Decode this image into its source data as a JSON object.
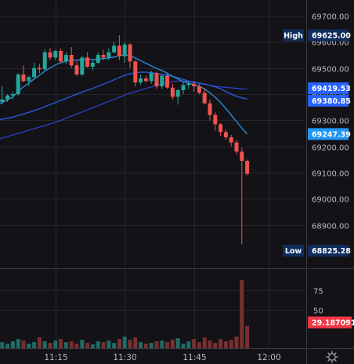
{
  "colors": {
    "background": "#131317",
    "grid": "#25262c",
    "separator": "#3a3b42",
    "up": "#26a69a",
    "down": "#ef5350",
    "volume_up": "#1e6b64",
    "volume_down": "#7a2e2e",
    "ma_fast": "#2d8fe0",
    "ma_mid": "#2a5ee8",
    "ma_slow": "#2e40c8",
    "tag_dark": "#0f2d5c",
    "tag_blue": "#2962ff",
    "tag_cyan": "#2196f3",
    "tag_red": "#f23645"
  },
  "icons": {
    "settings": "gear-icon"
  },
  "chart_data": {
    "type": "candlestick",
    "price_ylim": [
      68740,
      69760
    ],
    "price_ticks": [
      "69700.00",
      "69600.00",
      "69500.00",
      "69400.00",
      "69300.00",
      "69200.00",
      "69100.00",
      "69000.00",
      "68900.00"
    ],
    "volume_ylim": [
      0,
      100
    ],
    "volume_ticks": [
      "75",
      "50"
    ],
    "x_ticks": [
      "11:15",
      "11:30",
      "11:45",
      "12:00"
    ],
    "markers": {
      "high": {
        "label": "High",
        "value": "69625.00"
      },
      "low": {
        "label": "Low",
        "value": "68825.28"
      },
      "ma_values": [
        "69419.53",
        "69380.85",
        "69247.39"
      ],
      "last_volume": "29.187091"
    },
    "candles": [
      [
        69360,
        69380,
        69340,
        69370
      ],
      [
        69370,
        69430,
        69360,
        69380
      ],
      [
        69380,
        69400,
        69370,
        69395
      ],
      [
        69395,
        69410,
        69380,
        69400
      ],
      [
        69400,
        69480,
        69395,
        69475
      ],
      [
        69475,
        69510,
        69445,
        69450
      ],
      [
        69450,
        69470,
        69430,
        69465
      ],
      [
        69465,
        69520,
        69455,
        69500
      ],
      [
        69500,
        69515,
        69480,
        69495
      ],
      [
        69495,
        69570,
        69490,
        69560
      ],
      [
        69560,
        69575,
        69530,
        69540
      ],
      [
        69540,
        69570,
        69530,
        69565
      ],
      [
        69565,
        69575,
        69520,
        69525
      ],
      [
        69525,
        69560,
        69515,
        69550
      ],
      [
        69550,
        69580,
        69500,
        69510
      ],
      [
        69510,
        69525,
        69470,
        69475
      ],
      [
        69475,
        69545,
        69470,
        69540
      ],
      [
        69540,
        69560,
        69500,
        69505
      ],
      [
        69505,
        69530,
        69490,
        69520
      ],
      [
        69520,
        69560,
        69515,
        69550
      ],
      [
        69550,
        69570,
        69530,
        69540
      ],
      [
        69540,
        69575,
        69530,
        69560
      ],
      [
        69560,
        69600,
        69555,
        69585
      ],
      [
        69585,
        69625,
        69530,
        69545
      ],
      [
        69545,
        69600,
        69520,
        69590
      ],
      [
        69590,
        69595,
        69500,
        69525
      ],
      [
        69525,
        69530,
        69430,
        69445
      ],
      [
        69445,
        69475,
        69435,
        69460
      ],
      [
        69460,
        69470,
        69445,
        69450
      ],
      [
        69450,
        69490,
        69440,
        69480
      ],
      [
        69480,
        69485,
        69420,
        69430
      ],
      [
        69430,
        69475,
        69420,
        69470
      ],
      [
        69470,
        69480,
        69420,
        69425
      ],
      [
        69425,
        69440,
        69380,
        69390
      ],
      [
        69390,
        69420,
        69360,
        69415
      ],
      [
        69415,
        69445,
        69400,
        69435
      ],
      [
        69435,
        69450,
        69420,
        69440
      ],
      [
        69440,
        69450,
        69410,
        69430
      ],
      [
        69430,
        69440,
        69400,
        69405
      ],
      [
        69405,
        69420,
        69360,
        69365
      ],
      [
        69365,
        69380,
        69300,
        69320
      ],
      [
        69320,
        69330,
        69260,
        69285
      ],
      [
        69285,
        69290,
        69240,
        69255
      ],
      [
        69255,
        69265,
        69225,
        69235
      ],
      [
        69235,
        69245,
        69200,
        69215
      ],
      [
        69215,
        69225,
        69170,
        69180
      ],
      [
        69180,
        69195,
        68825,
        69145
      ],
      [
        69145,
        69150,
        69090,
        69095
      ]
    ],
    "volumes": [
      4,
      8,
      6,
      9,
      12,
      10,
      6,
      8,
      14,
      9,
      7,
      10,
      12,
      8,
      9,
      6,
      11,
      7,
      5,
      9,
      8,
      10,
      7,
      12,
      15,
      11,
      14,
      8,
      6,
      7,
      9,
      10,
      8,
      11,
      13,
      6,
      9,
      12,
      8,
      14,
      10,
      7,
      12,
      9,
      11,
      15,
      88,
      29
    ],
    "ma_fast": [
      69360,
      69368,
      69378,
      69390,
      69410,
      69428,
      69442,
      69458,
      69472,
      69488,
      69500,
      69512,
      69520,
      69526,
      69530,
      69530,
      69532,
      69534,
      69532,
      69534,
      69536,
      69538,
      69542,
      69548,
      69550,
      69548,
      69538,
      69528,
      69518,
      69508,
      69498,
      69490,
      69480,
      69468,
      69458,
      69448,
      69442,
      69436,
      69430,
      69420,
      69405,
      69388,
      69368,
      69345,
      69320,
      69295,
      69270,
      69247.39
    ],
    "ma_mid": [
      69300,
      69304,
      69308,
      69312,
      69318,
      69324,
      69330,
      69337,
      69344,
      69352,
      69360,
      69368,
      69376,
      69384,
      69392,
      69400,
      69408,
      69415,
      69422,
      69430,
      69438,
      69446,
      69455,
      69464,
      69472,
      69478,
      69482,
      69484,
      69484,
      69482,
      69479,
      69476,
      69472,
      69468,
      69462,
      69456,
      69450,
      69446,
      69442,
      69438,
      69434,
      69428,
      69420,
      69410,
      69400,
      69392,
      69386,
      69380.85
    ],
    "ma_slow": [
      69226,
      69232,
      69238,
      69244,
      69250,
      69256,
      69262,
      69268,
      69274,
      69280,
      69286,
      69292,
      69300,
      69308,
      69316,
      69324,
      69332,
      69340,
      69348,
      69356,
      69364,
      69372,
      69380,
      69388,
      69396,
      69404,
      69410,
      69416,
      69422,
      69428,
      69434,
      69440,
      69444,
      69448,
      69450,
      69450,
      69448,
      69445,
      69442,
      69438,
      69434,
      69430,
      69428,
      69426,
      69424,
      69422,
      69420,
      69419.53
    ]
  }
}
